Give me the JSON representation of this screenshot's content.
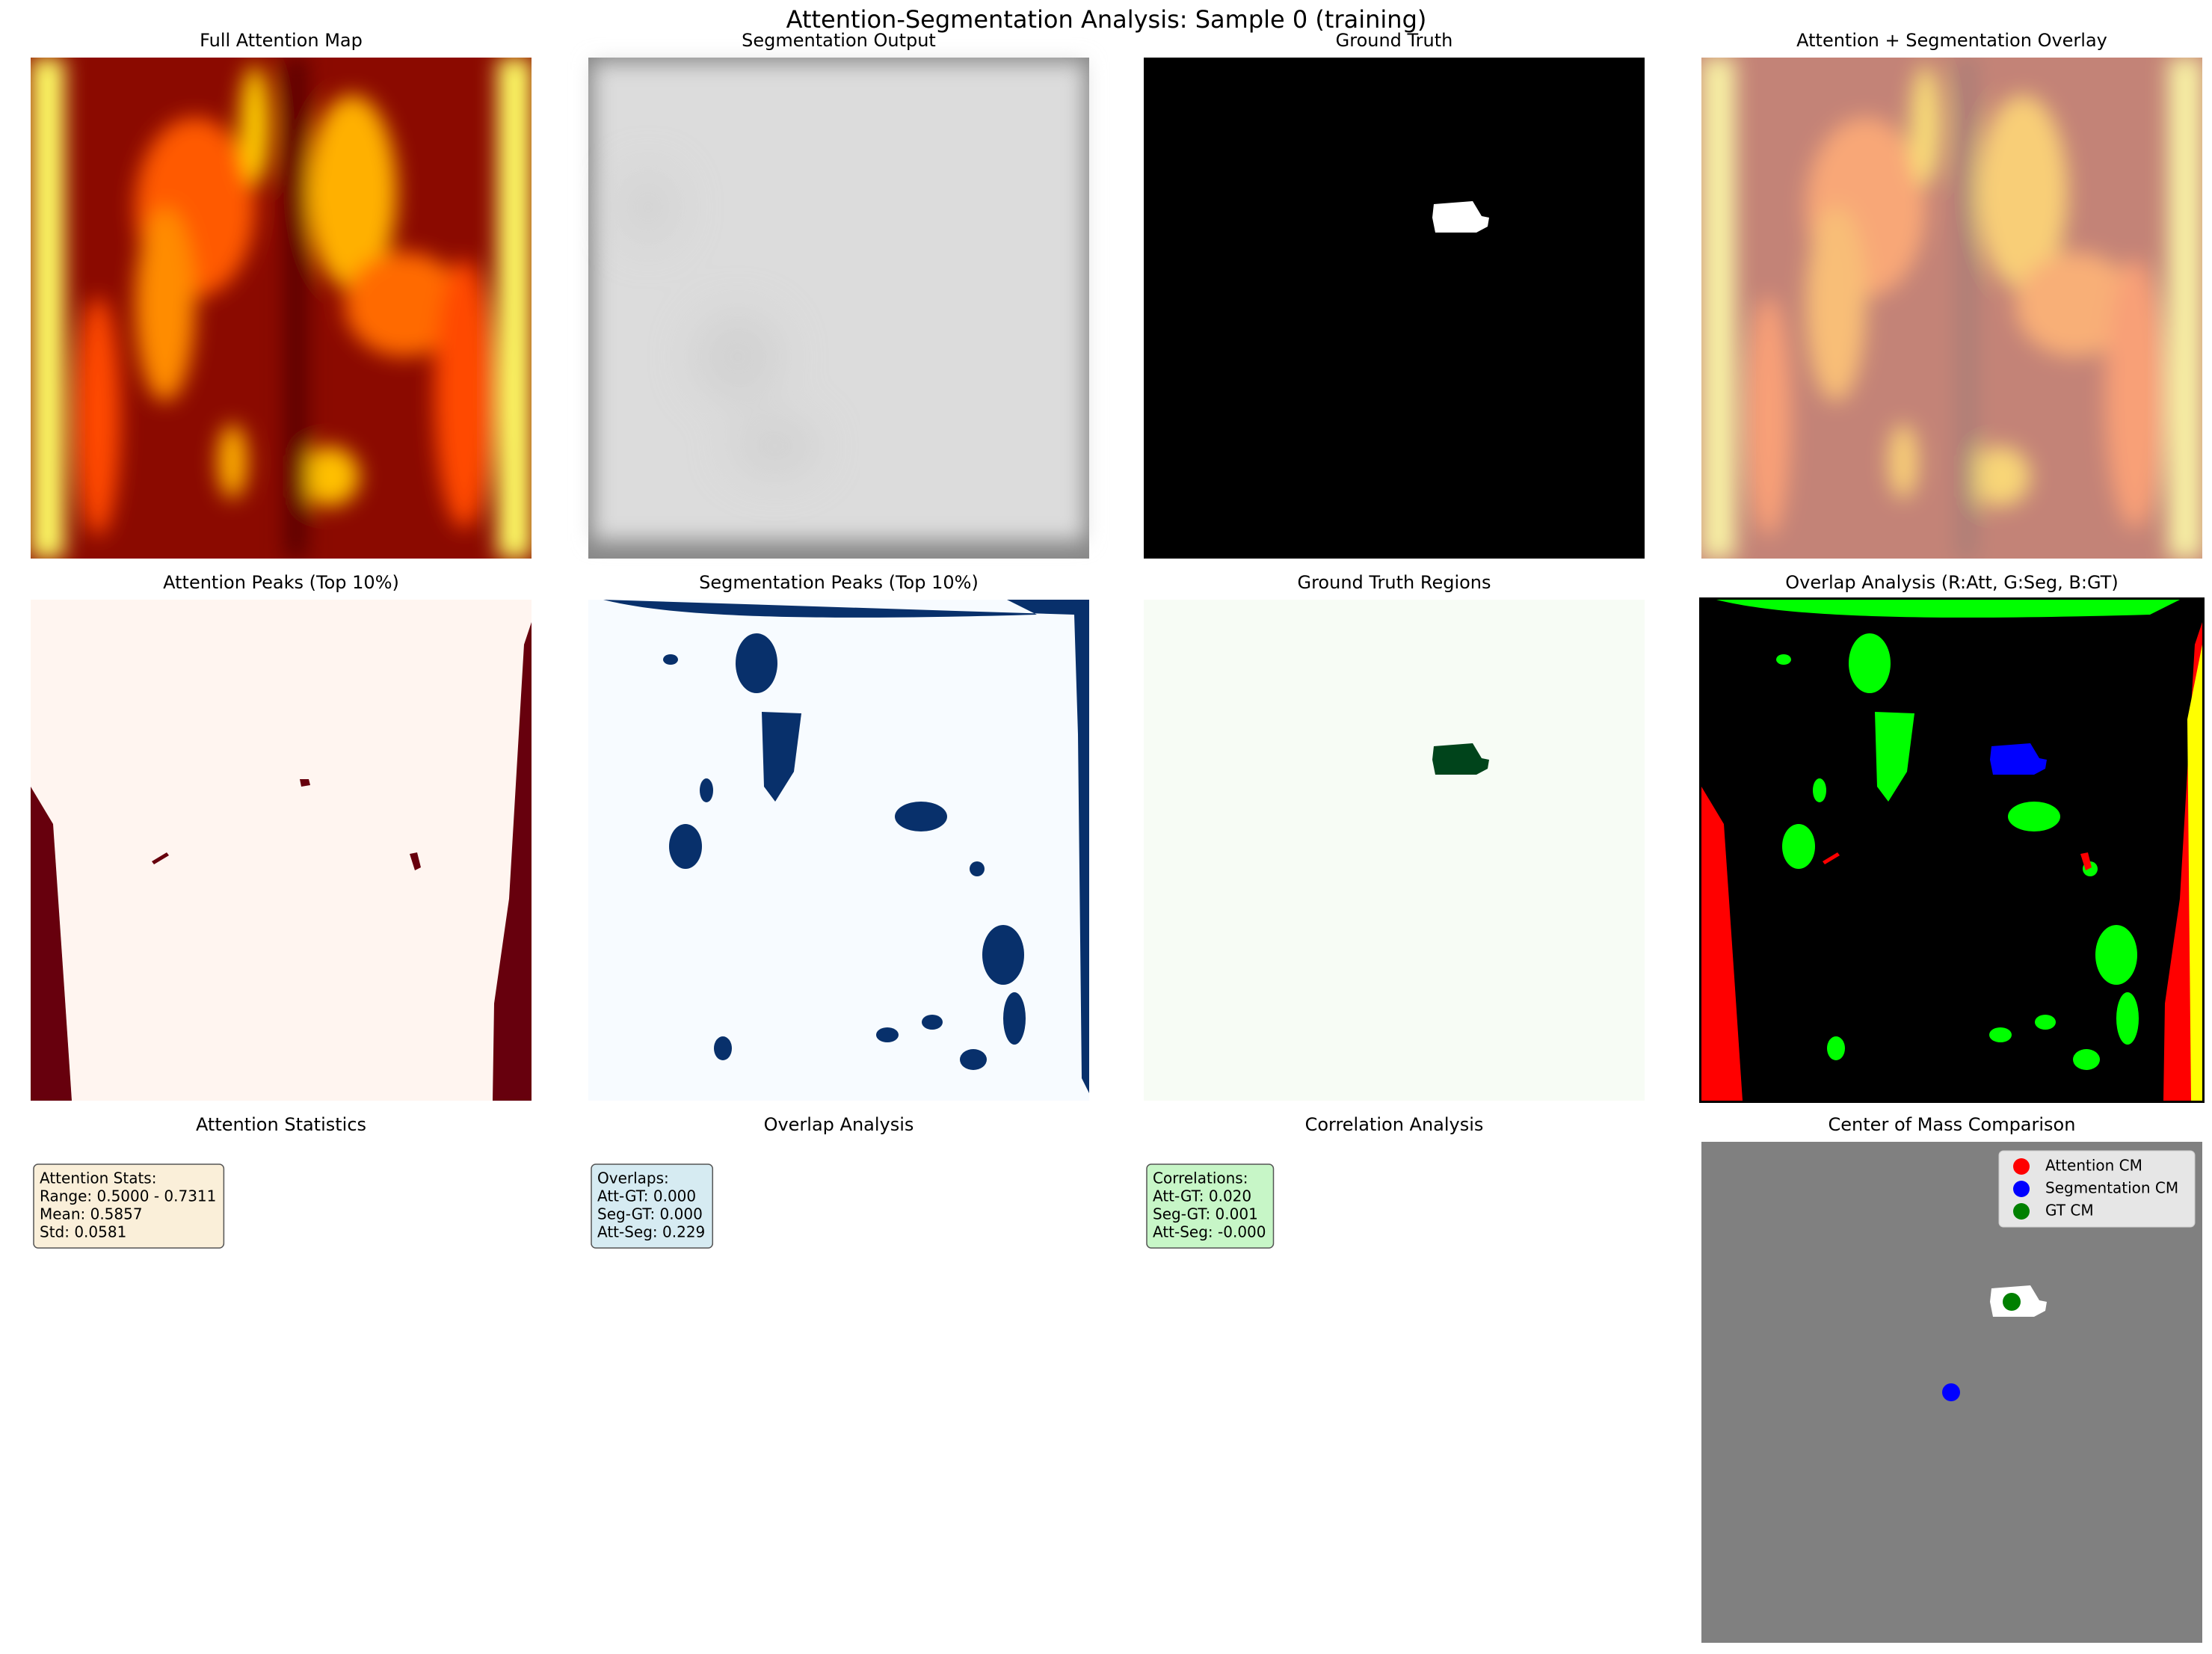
{
  "title": "Attention-Segmentation Analysis: Sample 0 (training)",
  "panels": [
    {
      "title": "Full Attention Map"
    },
    {
      "title": "Segmentation Output"
    },
    {
      "title": "Ground Truth"
    },
    {
      "title": "Attention + Segmentation Overlay"
    },
    {
      "title": "Attention Peaks (Top 10%)"
    },
    {
      "title": "Segmentation Peaks (Top 10%)"
    },
    {
      "title": "Ground Truth Regions"
    },
    {
      "title": "Overlap Analysis (R:Att, G:Seg, B:GT)"
    },
    {
      "title": "Attention Statistics",
      "box_color": "#faefd9",
      "lines": [
        "Attention Stats:",
        "Range: 0.5000 - 0.7311",
        "Mean: 0.5857",
        "Std: 0.0581"
      ]
    },
    {
      "title": "Overlap Analysis",
      "box_color": "#d6ebf2",
      "lines": [
        "Overlaps:",
        "Att-GT: 0.000",
        "Seg-GT: 0.000",
        "Att-Seg: 0.229"
      ]
    },
    {
      "title": "Correlation Analysis",
      "box_color": "#c7f6c7",
      "lines": [
        "Correlations:",
        "Att-GT: 0.020",
        "Seg-GT: 0.001",
        "Att-Seg: -0.000"
      ]
    },
    {
      "title": "Center of Mass Comparison",
      "legend": [
        {
          "label": "Attention CM",
          "color": "#ff0000"
        },
        {
          "label": "Segmentation CM",
          "color": "#0000ff"
        },
        {
          "label": "GT CM",
          "color": "#008000"
        }
      ]
    }
  ]
}
